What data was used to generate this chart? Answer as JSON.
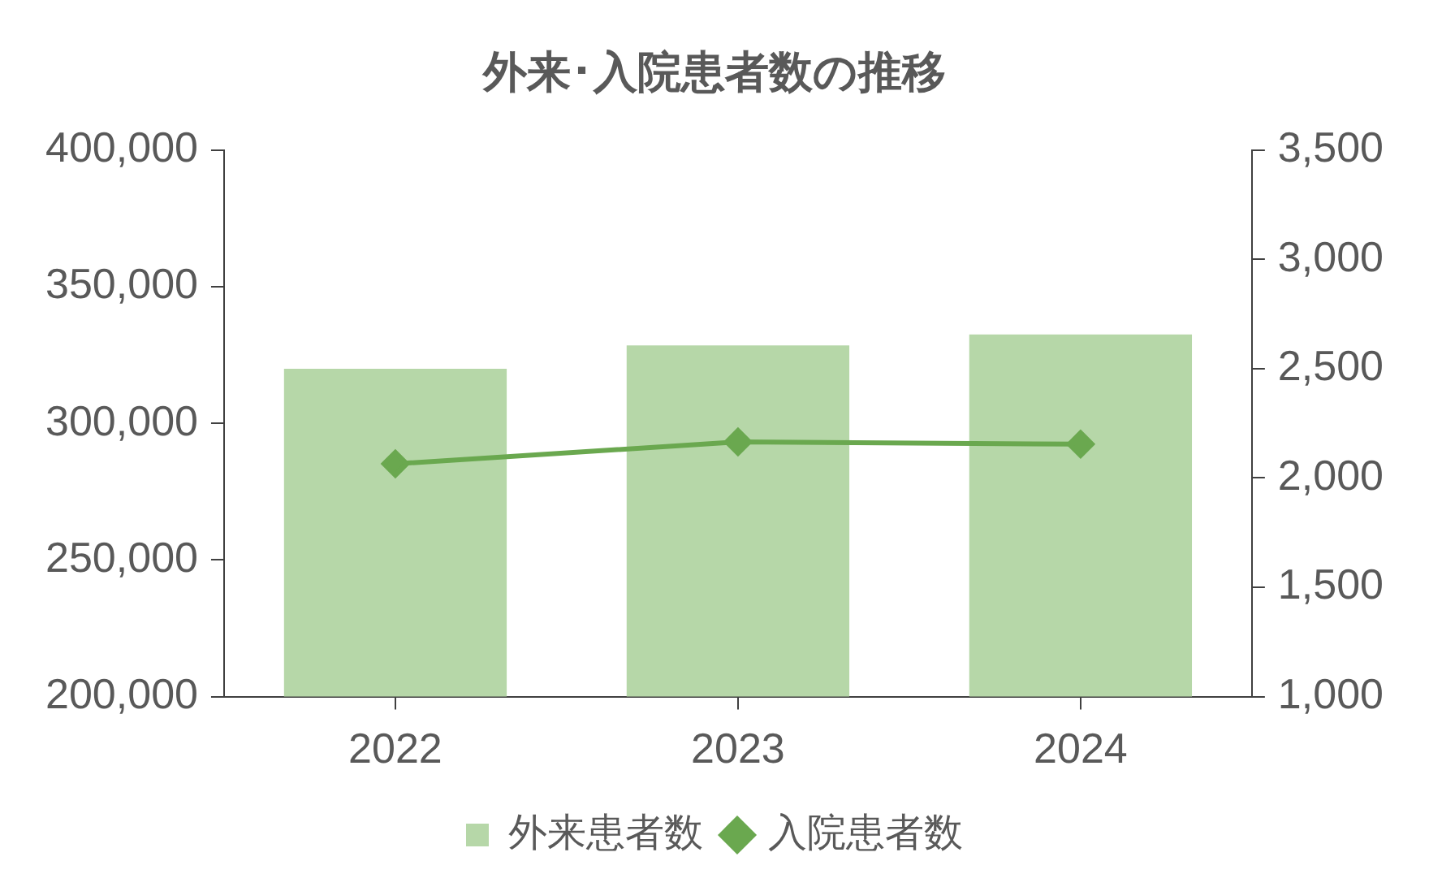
{
  "chart_data": {
    "type": "bar",
    "title": "外来･入院患者数の推移",
    "categories": [
      "2022",
      "2023",
      "2024"
    ],
    "series": [
      {
        "name": "外来患者数",
        "color": "#b6d7a8",
        "values": [
          320000,
          328500,
          332500
        ]
      },
      {
        "name": "入院患者数",
        "type": "line",
        "axis": "y2",
        "color": "#6aa84f",
        "marker": "diamond",
        "values": [
          2065,
          2165,
          2155
        ]
      }
    ],
    "ylim": [
      200000,
      400000
    ],
    "yticks": [
      {
        "value": 200000,
        "label": "200,000"
      },
      {
        "value": 250000,
        "label": "250,000"
      },
      {
        "value": 300000,
        "label": "300,000"
      },
      {
        "value": 350000,
        "label": "350,000"
      },
      {
        "value": 400000,
        "label": "400,000"
      }
    ],
    "y2lim": [
      1000,
      3500
    ],
    "y2ticks": [
      {
        "value": 1000,
        "label": "1,000"
      },
      {
        "value": 1500,
        "label": "1,500"
      },
      {
        "value": 2000,
        "label": "2,000"
      },
      {
        "value": 2500,
        "label": "2,500"
      },
      {
        "value": 3000,
        "label": "3,000"
      },
      {
        "value": 3500,
        "label": "3,500"
      }
    ],
    "grid": false,
    "legend": "bottom"
  }
}
